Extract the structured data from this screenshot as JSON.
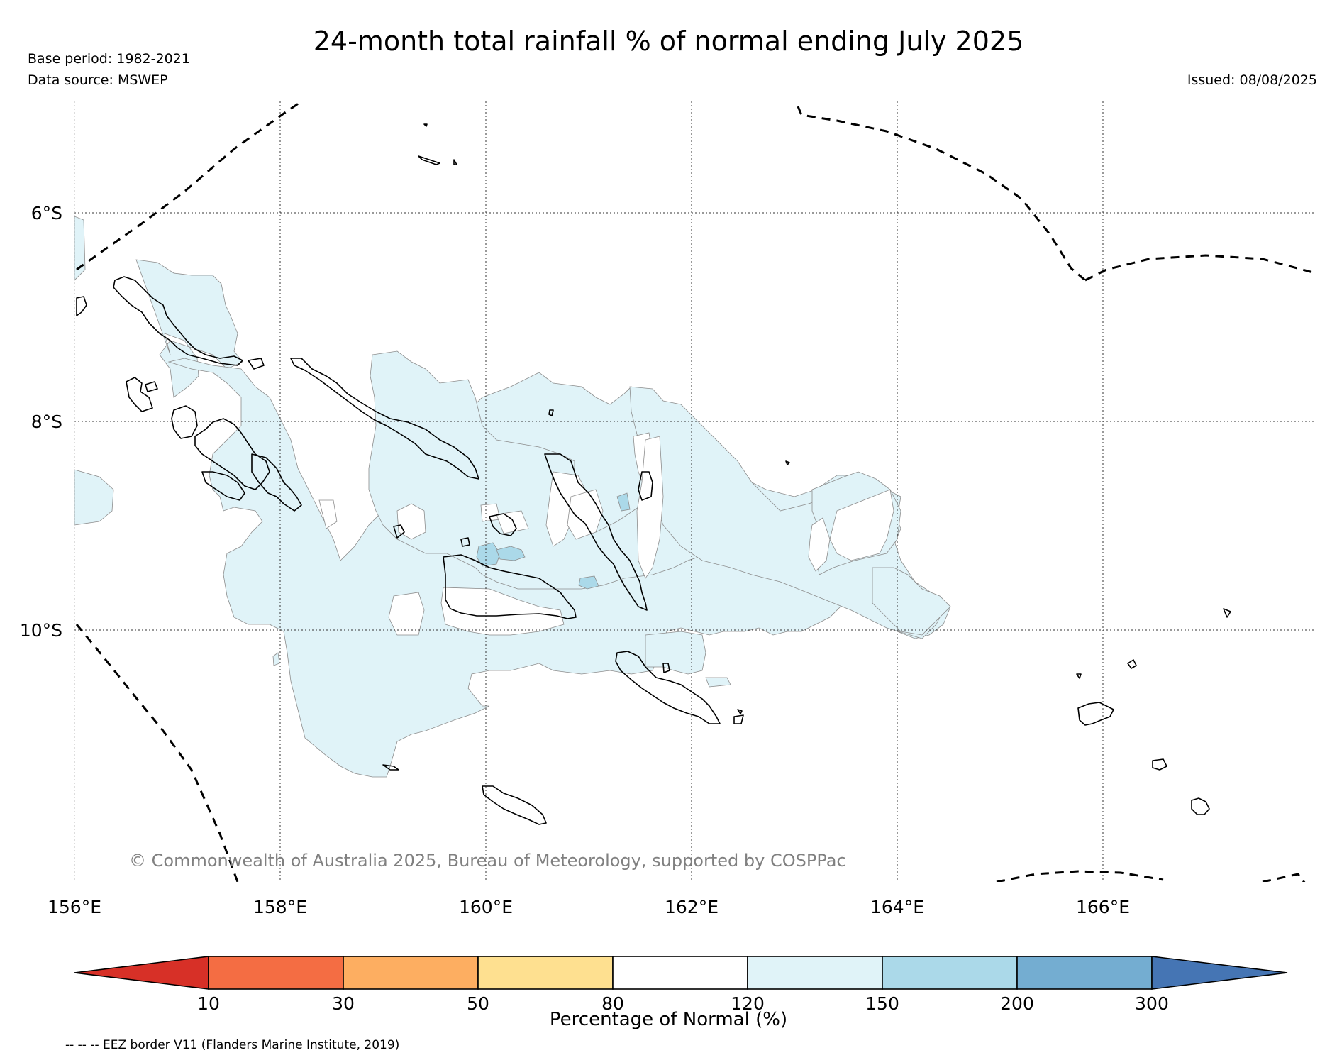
{
  "title": "24-month total rainfall % of normal ending July 2025",
  "base_period": "Base period: 1982-2021",
  "data_source": "Data source: MSWEP",
  "issued": "Issued: 08/08/2025",
  "copyright": "© Commonwealth of Australia 2025, Bureau of Meteorology, supported by COSPPac",
  "eez_note": "-- -- -- EEZ border V11 (Flanders Marine Institute, 2019)",
  "map": {
    "lon_range": [
      156.0,
      168.0
    ],
    "lat_range": [
      -5.0,
      -11.4
    ],
    "gridlines": true,
    "lat_labels": [
      "6°S",
      "8°S",
      "10°S"
    ],
    "lon_labels": [
      "156°E",
      "158°E",
      "160°E",
      "162°E",
      "164°E",
      "166°E"
    ]
  },
  "colorbar": {
    "label": "Percentage of Normal (%)",
    "ticks": [
      "10",
      "30",
      "50",
      "80",
      "120",
      "150",
      "200",
      "300"
    ],
    "colors": [
      "#d73027",
      "#f46d43",
      "#fdae61",
      "#fee090",
      "#ffffff",
      "#e0f3f8",
      "#abd9e9",
      "#74add1",
      "#4575b4"
    ],
    "extend": "both"
  },
  "legend_colors": {
    "rain_120_150": "#e0f3f8",
    "rain_150_200": "#abd9e9",
    "coastline": "#000000",
    "eez_border": "#000000"
  }
}
